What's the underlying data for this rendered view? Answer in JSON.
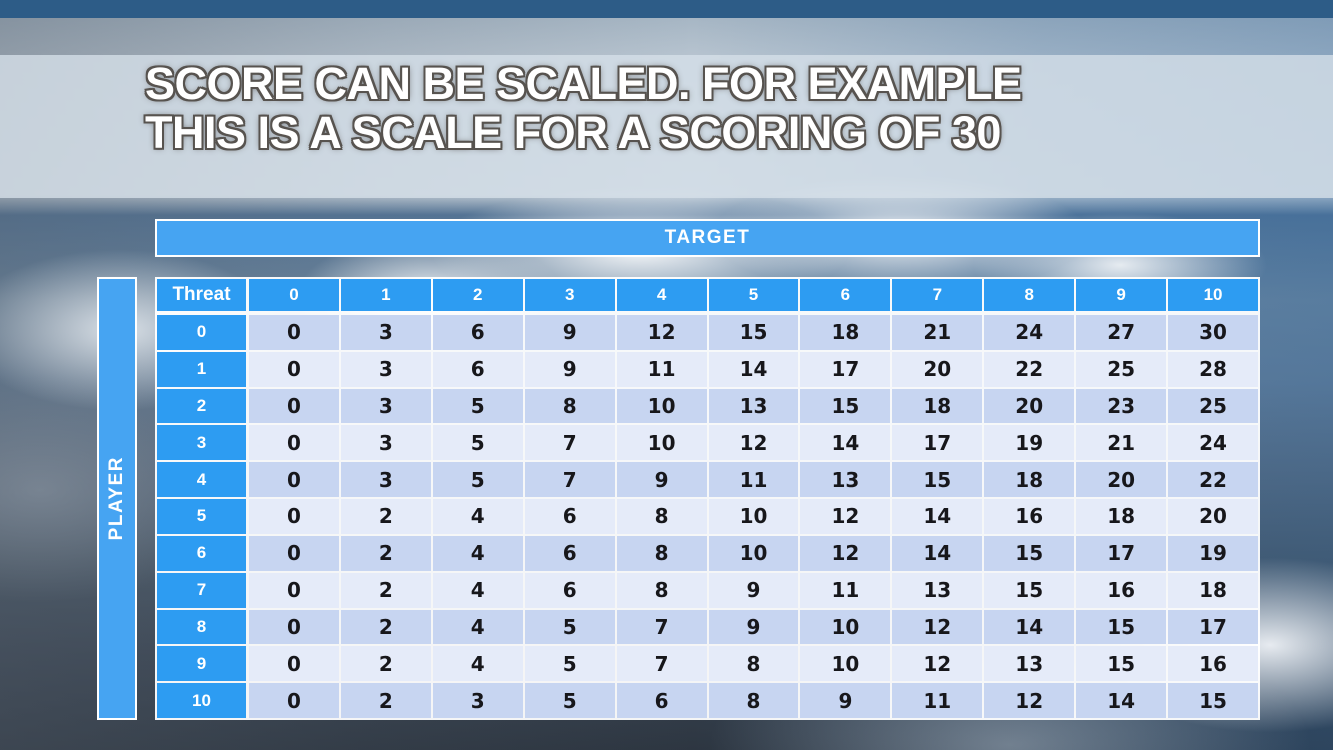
{
  "title": {
    "line1": "SCORE CAN BE SCALED. FOR EXAMPLE",
    "line2": "THIS IS A SCALE FOR A SCORING OF 30"
  },
  "matrix": {
    "target_label": "TARGET",
    "player_label": "PLAYER",
    "corner_label": "Threat",
    "column_headers": [
      "0",
      "1",
      "2",
      "3",
      "4",
      "5",
      "6",
      "7",
      "8",
      "9",
      "10"
    ],
    "row_headers": [
      "0",
      "1",
      "2",
      "3",
      "4",
      "5",
      "6",
      "7",
      "8",
      "9",
      "10"
    ],
    "rows": [
      [
        0,
        3,
        6,
        9,
        12,
        15,
        18,
        21,
        24,
        27,
        30
      ],
      [
        0,
        3,
        6,
        9,
        11,
        14,
        17,
        20,
        22,
        25,
        28
      ],
      [
        0,
        3,
        5,
        8,
        10,
        13,
        15,
        18,
        20,
        23,
        25
      ],
      [
        0,
        3,
        5,
        7,
        10,
        12,
        14,
        17,
        19,
        21,
        24
      ],
      [
        0,
        3,
        5,
        7,
        9,
        11,
        13,
        15,
        18,
        20,
        22
      ],
      [
        0,
        2,
        4,
        6,
        8,
        10,
        12,
        14,
        16,
        18,
        20
      ],
      [
        0,
        2,
        4,
        6,
        8,
        10,
        12,
        14,
        15,
        17,
        19
      ],
      [
        0,
        2,
        4,
        6,
        8,
        9,
        11,
        13,
        15,
        16,
        18
      ],
      [
        0,
        2,
        4,
        5,
        7,
        9,
        10,
        12,
        14,
        15,
        17
      ],
      [
        0,
        2,
        4,
        5,
        7,
        8,
        10,
        12,
        13,
        15,
        16
      ],
      [
        0,
        2,
        3,
        5,
        6,
        8,
        9,
        11,
        12,
        14,
        15
      ]
    ]
  },
  "chart_data": {
    "type": "table",
    "title": "Scale for a scoring of 30",
    "x_axis_label": "TARGET",
    "y_axis_label": "PLAYER",
    "corner_header": "Threat",
    "columns": [
      "0",
      "1",
      "2",
      "3",
      "4",
      "5",
      "6",
      "7",
      "8",
      "9",
      "10"
    ],
    "row_labels": [
      "0",
      "1",
      "2",
      "3",
      "4",
      "5",
      "6",
      "7",
      "8",
      "9",
      "10"
    ],
    "values": [
      [
        0,
        3,
        6,
        9,
        12,
        15,
        18,
        21,
        24,
        27,
        30
      ],
      [
        0,
        3,
        6,
        9,
        11,
        14,
        17,
        20,
        22,
        25,
        28
      ],
      [
        0,
        3,
        5,
        8,
        10,
        13,
        15,
        18,
        20,
        23,
        25
      ],
      [
        0,
        3,
        5,
        7,
        10,
        12,
        14,
        17,
        19,
        21,
        24
      ],
      [
        0,
        3,
        5,
        7,
        9,
        11,
        13,
        15,
        18,
        20,
        22
      ],
      [
        0,
        2,
        4,
        6,
        8,
        10,
        12,
        14,
        16,
        18,
        20
      ],
      [
        0,
        2,
        4,
        6,
        8,
        10,
        12,
        14,
        15,
        17,
        19
      ],
      [
        0,
        2,
        4,
        6,
        8,
        9,
        11,
        13,
        15,
        16,
        18
      ],
      [
        0,
        2,
        4,
        5,
        7,
        9,
        10,
        12,
        14,
        15,
        17
      ],
      [
        0,
        2,
        4,
        5,
        7,
        8,
        10,
        12,
        13,
        15,
        16
      ],
      [
        0,
        2,
        3,
        5,
        6,
        8,
        9,
        11,
        12,
        14,
        15
      ]
    ]
  },
  "colors": {
    "header_blue": "#2d9cf2",
    "band_blue": "#46a4f2",
    "row_dark": "#c7d5f1",
    "row_light": "#e5ebf9",
    "cell_text": "#17171b",
    "top_strip": "#2d5c87",
    "title_fill": "#ffffff",
    "title_outline": "#57534f"
  }
}
